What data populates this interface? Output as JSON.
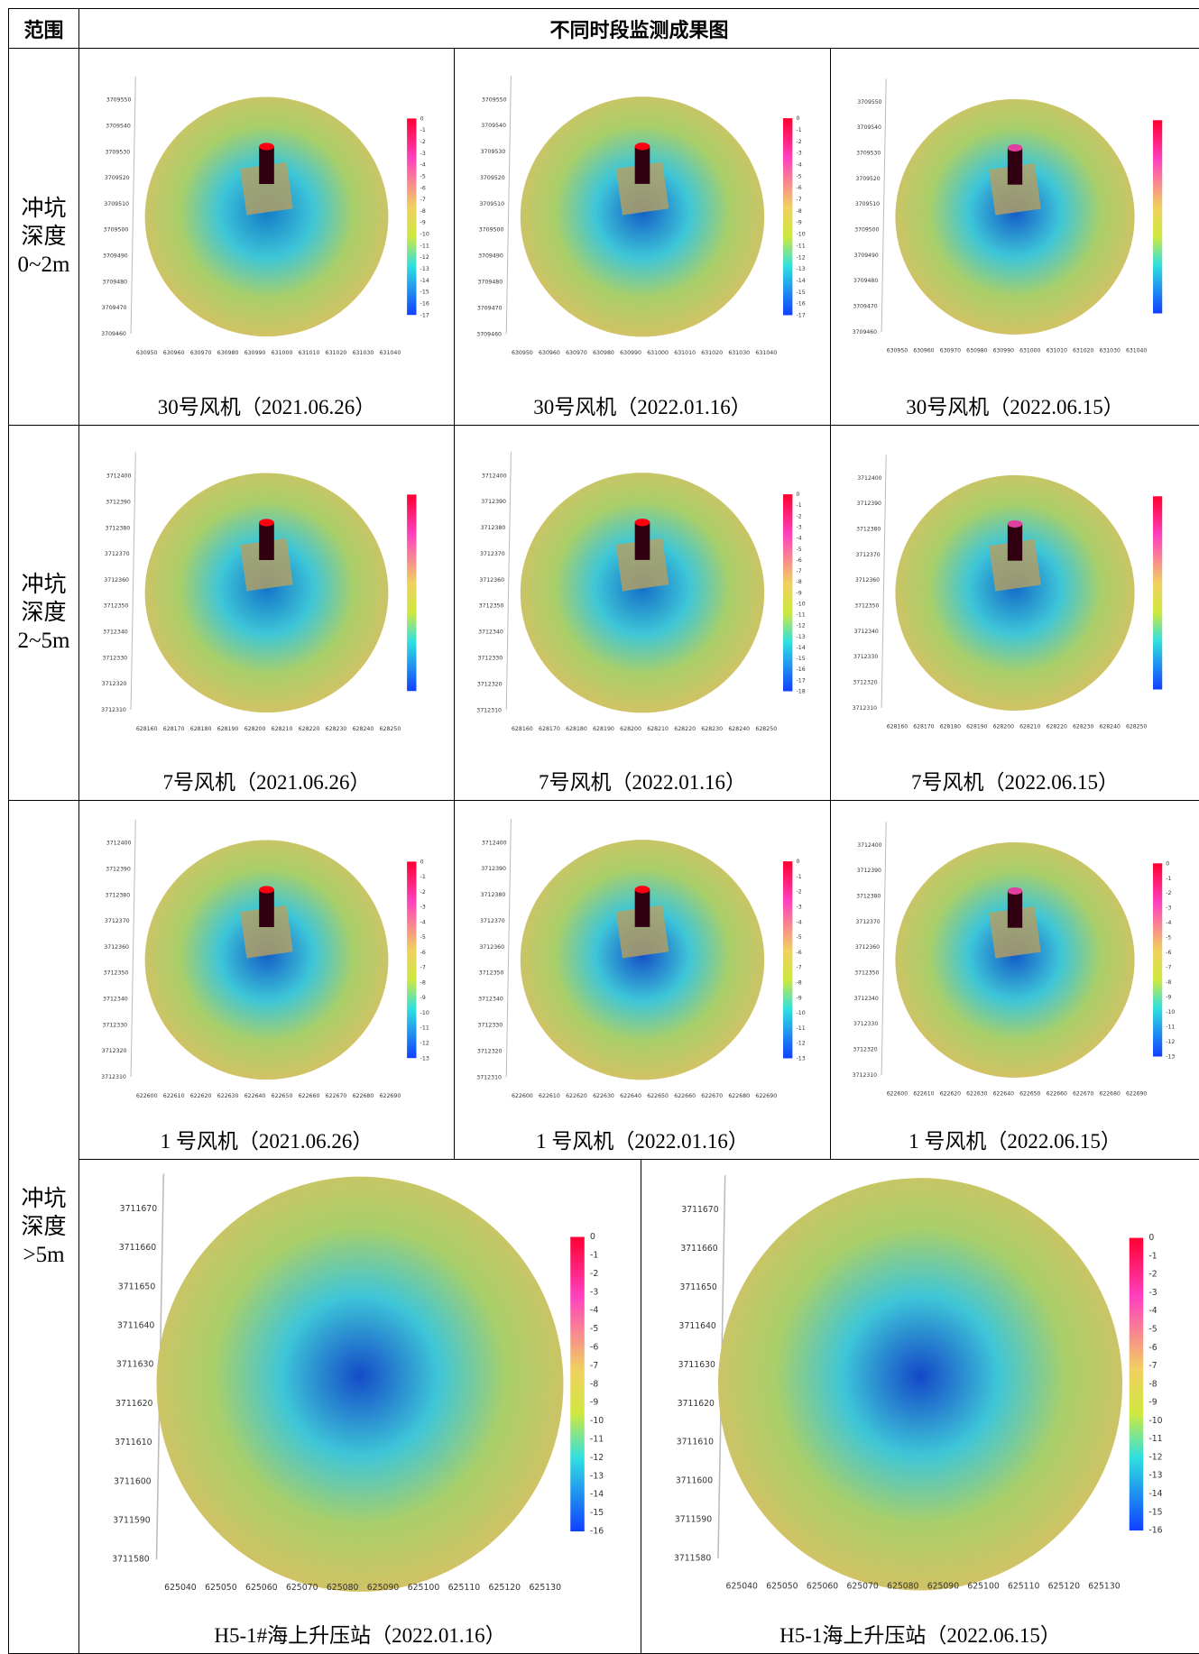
{
  "header": {
    "range": "范围",
    "title": "不同时段监测成果图"
  },
  "groups": [
    {
      "label": [
        "冲坑",
        "深度",
        "0~2m"
      ],
      "rows": [
        [
          {
            "caption": "30号风机（2021.06.26）",
            "xticks": [
              630950,
              630960,
              630970,
              630980,
              630990,
              631000,
              631010,
              631020,
              631030,
              631040
            ],
            "yticks": [
              3709460,
              3709470,
              3709480,
              3709490,
              3709500,
              3709510,
              3709520,
              3709530,
              3709540,
              3709550
            ],
            "cbar": [
              0,
              -1,
              -2,
              -3,
              -4,
              -5,
              -6,
              -7,
              -8,
              -9,
              -10,
              -11,
              -12,
              -13,
              -14,
              -15,
              -16,
              -17
            ]
          },
          {
            "caption": "30号风机（2022.01.16）",
            "xticks": [
              630950,
              630960,
              630970,
              630980,
              630990,
              631000,
              631010,
              631020,
              631030,
              631040
            ],
            "yticks": [
              3709460,
              3709470,
              3709480,
              3709490,
              3709500,
              3709510,
              3709520,
              3709530,
              3709540,
              3709550
            ],
            "cbar": [
              0,
              -1,
              -2,
              -3,
              -4,
              -5,
              -6,
              -7,
              -8,
              -9,
              -10,
              -11,
              -12,
              -13,
              -14,
              -15,
              -16,
              -17
            ]
          },
          {
            "caption": "30号风机（2022.06.15）",
            "xticks": [
              630950,
              630960,
              630970,
              630980,
              630990,
              631000,
              631010,
              631020,
              631030,
              631040
            ],
            "yticks": [
              3709460,
              3709470,
              3709480,
              3709490,
              3709500,
              3709510,
              3709520,
              3709530,
              3709540,
              3709550
            ],
            "cbar": []
          }
        ]
      ]
    },
    {
      "label": [
        "冲坑",
        "深度",
        "2~5m"
      ],
      "rows": [
        [
          {
            "caption": "7号风机（2021.06.26）",
            "xticks": [
              628160,
              628170,
              628180,
              628190,
              628200,
              628210,
              628220,
              628230,
              628240,
              628250
            ],
            "yticks": [
              3712310,
              3712320,
              3712330,
              3712340,
              3712350,
              3712360,
              3712370,
              3712380,
              3712390,
              3712400
            ],
            "cbar": []
          },
          {
            "caption": "7号风机（2022.01.16）",
            "xticks": [
              628160,
              628170,
              628180,
              628190,
              628200,
              628210,
              628220,
              628230,
              628240,
              628250
            ],
            "yticks": [
              3712310,
              3712320,
              3712330,
              3712340,
              3712350,
              3712360,
              3712370,
              3712380,
              3712390,
              3712400
            ],
            "cbar": [
              0,
              -1,
              -2,
              -3,
              -4,
              -5,
              -6,
              -7,
              -8,
              -9,
              -10,
              -11,
              -12,
              -13,
              -14,
              -15,
              -16,
              -17,
              -18
            ]
          },
          {
            "caption": "7号风机（2022.06.15）",
            "xticks": [
              628160,
              628170,
              628180,
              628190,
              628200,
              628210,
              628220,
              628230,
              628240,
              628250
            ],
            "yticks": [
              3712310,
              3712320,
              3712330,
              3712340,
              3712350,
              3712360,
              3712370,
              3712380,
              3712390,
              3712400
            ],
            "cbar": []
          }
        ]
      ]
    },
    {
      "label": [
        "冲坑",
        "深度",
        ">5m"
      ],
      "rows": [
        [
          {
            "caption": "1 号风机（2021.06.26）",
            "xticks": [
              622600,
              622610,
              622620,
              622630,
              622640,
              622650,
              622660,
              622670,
              622680,
              622690
            ],
            "yticks": [
              3712310,
              3712320,
              3712330,
              3712340,
              3712350,
              3712360,
              3712370,
              3712380,
              3712390,
              3712400
            ],
            "cbar": [
              0,
              -1,
              -2,
              -3,
              -4,
              -5,
              -6,
              -7,
              -8,
              -9,
              -10,
              -11,
              -12,
              -13
            ]
          },
          {
            "caption": "1 号风机（2022.01.16）",
            "xticks": [
              622600,
              622610,
              622620,
              622630,
              622640,
              622650,
              622660,
              622670,
              622680,
              622690
            ],
            "yticks": [
              3712310,
              3712320,
              3712330,
              3712340,
              3712350,
              3712360,
              3712370,
              3712380,
              3712390,
              3712400
            ],
            "cbar": [
              0,
              -1,
              -2,
              -3,
              -4,
              -5,
              -6,
              -7,
              -8,
              -9,
              -10,
              -11,
              -12,
              -13
            ]
          },
          {
            "caption": "1 号风机（2022.06.15）",
            "xticks": [
              622600,
              622610,
              622620,
              622630,
              622640,
              622650,
              622660,
              622670,
              622680,
              622690
            ],
            "yticks": [
              3712310,
              3712320,
              3712330,
              3712340,
              3712350,
              3712360,
              3712370,
              3712380,
              3712390,
              3712400
            ],
            "cbar": [
              0,
              -1,
              -2,
              -3,
              -4,
              -5,
              -6,
              -7,
              -8,
              -9,
              -10,
              -11,
              -12,
              -13
            ]
          }
        ],
        [
          {
            "caption": "H5-1#海上升压站（2022.01.16）",
            "xticks": [
              625040,
              625050,
              625060,
              625070,
              625080,
              625090,
              625100,
              625110,
              625120,
              625130
            ],
            "yticks": [
              3711580,
              3711590,
              3711600,
              3711610,
              3711620,
              3711630,
              3711640,
              3711650,
              3711660,
              3711670
            ],
            "cbar": [
              0,
              -1,
              -2,
              -3,
              -4,
              -5,
              -6,
              -7,
              -8,
              -9,
              -10,
              -11,
              -12,
              -13,
              -14,
              -15,
              -16
            ]
          },
          {
            "caption": "H5-1海上升压站（2022.06.15）",
            "xticks": [
              625040,
              625050,
              625060,
              625070,
              625080,
              625090,
              625100,
              625110,
              625120,
              625130
            ],
            "yticks": [
              3711580,
              3711590,
              3711600,
              3711610,
              3711620,
              3711630,
              3711640,
              3711650,
              3711660,
              3711670
            ],
            "cbar": [
              0,
              -1,
              -2,
              -3,
              -4,
              -5,
              -6,
              -7,
              -8,
              -9,
              -10,
              -11,
              -12,
              -13,
              -14,
              -15,
              -16
            ]
          }
        ]
      ]
    }
  ]
}
